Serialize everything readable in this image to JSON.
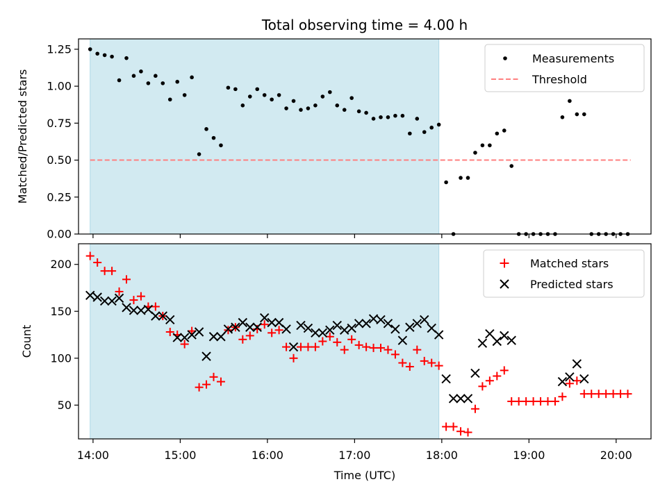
{
  "title": "Total observing time = 4.00 h",
  "colors": {
    "measurements": "#000000",
    "threshold": "#ff7f7f",
    "matched": "#ff0000",
    "predicted": "#000000",
    "shade": "#add8e6"
  },
  "chart_data": [
    {
      "type": "scatter",
      "ylabel": "Matched/Predicted stars",
      "xlabel": "",
      "ylim": [
        0,
        1.32
      ],
      "xlim": [
        "13:50",
        "20:24"
      ],
      "yticks": [
        "0.00",
        "0.25",
        "0.50",
        "0.75",
        "1.00",
        "1.25"
      ],
      "shaded_span": [
        "13:58",
        "17:58"
      ],
      "legend": {
        "position": "top-right",
        "entries": [
          "Measurements",
          "Threshold"
        ]
      },
      "threshold": {
        "name": "Threshold",
        "y": 0.5,
        "x_range": [
          "13:58",
          "20:10"
        ]
      },
      "series": [
        {
          "name": "Measurements",
          "marker": "dot",
          "x": [
            "13:58",
            "14:03",
            "14:08",
            "14:13",
            "14:18",
            "14:23",
            "14:28",
            "14:33",
            "14:38",
            "14:43",
            "14:48",
            "14:53",
            "14:58",
            "15:03",
            "15:08",
            "15:13",
            "15:18",
            "15:23",
            "15:28",
            "15:33",
            "15:38",
            "15:43",
            "15:48",
            "15:53",
            "15:58",
            "16:03",
            "16:08",
            "16:13",
            "16:18",
            "16:23",
            "16:28",
            "16:33",
            "16:38",
            "16:43",
            "16:48",
            "16:53",
            "16:58",
            "17:03",
            "17:08",
            "17:13",
            "17:18",
            "17:23",
            "17:28",
            "17:33",
            "17:38",
            "17:43",
            "17:48",
            "17:53",
            "17:58",
            "18:03",
            "18:08",
            "18:13",
            "18:18",
            "18:23",
            "18:28",
            "18:33",
            "18:38",
            "18:43",
            "18:48",
            "18:53",
            "18:58",
            "19:03",
            "19:08",
            "19:13",
            "19:18",
            "19:23",
            "19:28",
            "19:33",
            "19:38",
            "19:43",
            "19:48",
            "19:53",
            "19:58",
            "20:03",
            "20:08"
          ],
          "y": [
            1.25,
            1.22,
            1.21,
            1.2,
            1.04,
            1.19,
            1.07,
            1.1,
            1.02,
            1.07,
            1.02,
            0.91,
            1.03,
            0.94,
            1.06,
            0.54,
            0.71,
            0.65,
            0.6,
            0.99,
            0.98,
            0.87,
            0.93,
            0.98,
            0.94,
            0.91,
            0.94,
            0.85,
            0.9,
            0.84,
            0.85,
            0.87,
            0.93,
            0.96,
            0.87,
            0.84,
            0.92,
            0.83,
            0.82,
            0.78,
            0.79,
            0.79,
            0.8,
            0.8,
            0.68,
            0.78,
            0.69,
            0.72,
            0.74,
            0.35,
            0.0,
            0.38,
            0.38,
            0.55,
            0.6,
            0.6,
            0.68,
            0.7,
            0.46,
            0.0,
            0.0,
            0.0,
            0.0,
            0.0,
            0.0,
            0.79,
            0.9,
            0.81,
            0.81,
            0.0,
            0.0,
            0.0,
            0.0,
            0.0,
            0.0
          ]
        }
      ]
    },
    {
      "type": "scatter",
      "ylabel": "Count",
      "xlabel": "Time (UTC)",
      "ylim": [
        14,
        222
      ],
      "xlim": [
        "13:50",
        "20:24"
      ],
      "yticks": [
        "50",
        "100",
        "150",
        "200"
      ],
      "xticks": [
        "14:00",
        "15:00",
        "16:00",
        "17:00",
        "18:00",
        "19:00",
        "20:00"
      ],
      "shaded_span": [
        "13:58",
        "17:58"
      ],
      "legend": {
        "position": "top-right",
        "entries": [
          "Matched stars",
          "Predicted stars"
        ]
      },
      "x": [
        "13:58",
        "14:03",
        "14:08",
        "14:13",
        "14:18",
        "14:23",
        "14:28",
        "14:33",
        "14:38",
        "14:43",
        "14:48",
        "14:53",
        "14:58",
        "15:03",
        "15:08",
        "15:13",
        "15:18",
        "15:23",
        "15:28",
        "15:33",
        "15:38",
        "15:43",
        "15:48",
        "15:53",
        "15:58",
        "16:03",
        "16:08",
        "16:13",
        "16:18",
        "16:23",
        "16:28",
        "16:33",
        "16:38",
        "16:43",
        "16:48",
        "16:53",
        "16:58",
        "17:03",
        "17:08",
        "17:13",
        "17:18",
        "17:23",
        "17:28",
        "17:33",
        "17:38",
        "17:43",
        "17:48",
        "17:53",
        "17:58",
        "18:03",
        "18:08",
        "18:13",
        "18:18",
        "18:23",
        "18:28",
        "18:33",
        "18:38",
        "18:43",
        "18:48",
        "18:53",
        "18:58",
        "19:03",
        "19:08",
        "19:13",
        "19:18",
        "19:23",
        "19:28",
        "19:33",
        "19:38",
        "19:43",
        "19:48",
        "19:53",
        "19:58",
        "20:03",
        "20:08"
      ],
      "series": [
        {
          "name": "Matched stars",
          "marker": "plus",
          "y": [
            209,
            202,
            193,
            193,
            171,
            184,
            162,
            166,
            155,
            155,
            145,
            128,
            125,
            115,
            129,
            69,
            72,
            80,
            75,
            130,
            133,
            120,
            124,
            131,
            136,
            127,
            130,
            112,
            100,
            112,
            112,
            112,
            118,
            123,
            117,
            109,
            120,
            114,
            112,
            111,
            111,
            109,
            104,
            95,
            91,
            109,
            97,
            95,
            92,
            27,
            27,
            22,
            21,
            46,
            70,
            76,
            81,
            87,
            54,
            54,
            54,
            54,
            54,
            54,
            54,
            59,
            73,
            76,
            62,
            62,
            62,
            62,
            62,
            62,
            62
          ]
        },
        {
          "name": "Predicted stars",
          "marker": "x",
          "y": [
            167,
            165,
            161,
            161,
            164,
            154,
            151,
            151,
            152,
            145,
            145,
            141,
            122,
            122,
            125,
            128,
            102,
            123,
            123,
            131,
            133,
            138,
            133,
            133,
            143,
            138,
            138,
            131,
            112,
            135,
            132,
            127,
            127,
            130,
            135,
            130,
            132,
            137,
            137,
            142,
            141,
            137,
            131,
            119,
            133,
            137,
            141,
            132,
            125,
            78,
            57,
            57,
            57,
            84,
            116,
            126,
            118,
            124,
            119,
            null,
            null,
            null,
            null,
            null,
            null,
            75,
            80,
            94,
            78,
            null,
            null,
            null,
            null,
            null,
            null
          ]
        }
      ]
    }
  ]
}
